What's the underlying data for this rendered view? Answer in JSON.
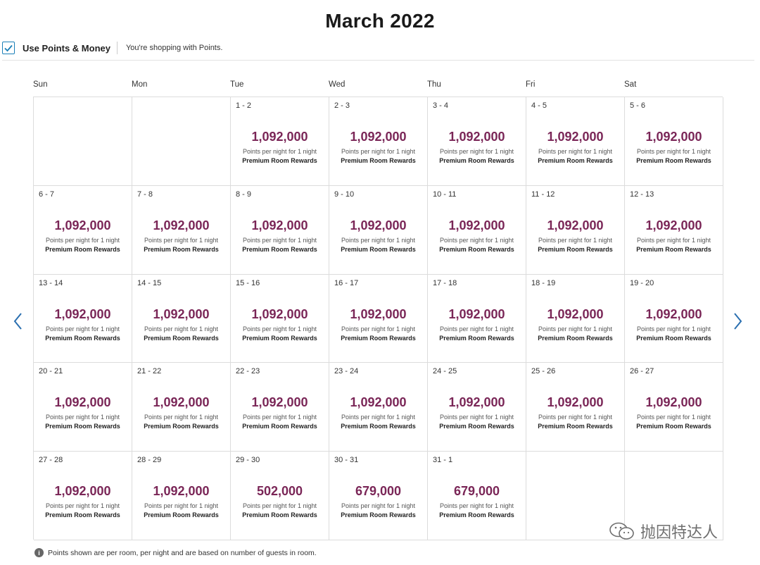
{
  "title": "March 2022",
  "points_money": {
    "label": "Use Points & Money",
    "checked": true
  },
  "shopping_text": "You're shopping with Points.",
  "days_of_week": [
    "Sun",
    "Mon",
    "Tue",
    "Wed",
    "Thu",
    "Fri",
    "Sat"
  ],
  "calendar": {
    "cells": [
      {
        "range": "",
        "points": "",
        "sub": "",
        "type": ""
      },
      {
        "range": "",
        "points": "",
        "sub": "",
        "type": ""
      },
      {
        "range": "1 - 2",
        "points": "1,092,000",
        "sub": "Points per night for 1 night",
        "type": "Premium Room Rewards"
      },
      {
        "range": "2 - 3",
        "points": "1,092,000",
        "sub": "Points per night for 1 night",
        "type": "Premium Room Rewards"
      },
      {
        "range": "3 - 4",
        "points": "1,092,000",
        "sub": "Points per night for 1 night",
        "type": "Premium Room Rewards"
      },
      {
        "range": "4 - 5",
        "points": "1,092,000",
        "sub": "Points per night for 1 night",
        "type": "Premium Room Rewards"
      },
      {
        "range": "5 - 6",
        "points": "1,092,000",
        "sub": "Points per night for 1 night",
        "type": "Premium Room Rewards"
      },
      {
        "range": "6 - 7",
        "points": "1,092,000",
        "sub": "Points per night for 1 night",
        "type": "Premium Room Rewards"
      },
      {
        "range": "7 - 8",
        "points": "1,092,000",
        "sub": "Points per night for 1 night",
        "type": "Premium Room Rewards"
      },
      {
        "range": "8 - 9",
        "points": "1,092,000",
        "sub": "Points per night for 1 night",
        "type": "Premium Room Rewards"
      },
      {
        "range": "9 - 10",
        "points": "1,092,000",
        "sub": "Points per night for 1 night",
        "type": "Premium Room Rewards"
      },
      {
        "range": "10 - 11",
        "points": "1,092,000",
        "sub": "Points per night for 1 night",
        "type": "Premium Room Rewards"
      },
      {
        "range": "11 - 12",
        "points": "1,092,000",
        "sub": "Points per night for 1 night",
        "type": "Premium Room Rewards"
      },
      {
        "range": "12 - 13",
        "points": "1,092,000",
        "sub": "Points per night for 1 night",
        "type": "Premium Room Rewards"
      },
      {
        "range": "13 - 14",
        "points": "1,092,000",
        "sub": "Points per night for 1 night",
        "type": "Premium Room Rewards"
      },
      {
        "range": "14 - 15",
        "points": "1,092,000",
        "sub": "Points per night for 1 night",
        "type": "Premium Room Rewards"
      },
      {
        "range": "15 - 16",
        "points": "1,092,000",
        "sub": "Points per night for 1 night",
        "type": "Premium Room Rewards"
      },
      {
        "range": "16 - 17",
        "points": "1,092,000",
        "sub": "Points per night for 1 night",
        "type": "Premium Room Rewards"
      },
      {
        "range": "17 - 18",
        "points": "1,092,000",
        "sub": "Points per night for 1 night",
        "type": "Premium Room Rewards"
      },
      {
        "range": "18 - 19",
        "points": "1,092,000",
        "sub": "Points per night for 1 night",
        "type": "Premium Room Rewards"
      },
      {
        "range": "19 - 20",
        "points": "1,092,000",
        "sub": "Points per night for 1 night",
        "type": "Premium Room Rewards"
      },
      {
        "range": "20 - 21",
        "points": "1,092,000",
        "sub": "Points per night for 1 night",
        "type": "Premium Room Rewards"
      },
      {
        "range": "21 - 22",
        "points": "1,092,000",
        "sub": "Points per night for 1 night",
        "type": "Premium Room Rewards"
      },
      {
        "range": "22 - 23",
        "points": "1,092,000",
        "sub": "Points per night for 1 night",
        "type": "Premium Room Rewards"
      },
      {
        "range": "23 - 24",
        "points": "1,092,000",
        "sub": "Points per night for 1 night",
        "type": "Premium Room Rewards"
      },
      {
        "range": "24 - 25",
        "points": "1,092,000",
        "sub": "Points per night for 1 night",
        "type": "Premium Room Rewards"
      },
      {
        "range": "25 - 26",
        "points": "1,092,000",
        "sub": "Points per night for 1 night",
        "type": "Premium Room Rewards"
      },
      {
        "range": "26 - 27",
        "points": "1,092,000",
        "sub": "Points per night for 1 night",
        "type": "Premium Room Rewards"
      },
      {
        "range": "27 - 28",
        "points": "1,092,000",
        "sub": "Points per night for 1 night",
        "type": "Premium Room Rewards"
      },
      {
        "range": "28 - 29",
        "points": "1,092,000",
        "sub": "Points per night for 1 night",
        "type": "Premium Room Rewards"
      },
      {
        "range": "29 - 30",
        "points": "502,000",
        "sub": "Points per night for 1 night",
        "type": "Premium Room Rewards"
      },
      {
        "range": "30 - 31",
        "points": "679,000",
        "sub": "Points per night for 1 night",
        "type": "Premium Room Rewards"
      },
      {
        "range": "31 - 1",
        "points": "679,000",
        "sub": "Points per night for 1 night",
        "type": "Premium Room Rewards"
      },
      {
        "range": "",
        "points": "",
        "sub": "",
        "type": ""
      },
      {
        "range": "",
        "points": "",
        "sub": "",
        "type": ""
      }
    ]
  },
  "footnote": "Points shown are per room, per night and are based on number of guests in room.",
  "watermark_text": "抛因特达人",
  "colors": {
    "points": "#7a2657",
    "accent": "#1a7fb8"
  },
  "icons": {
    "prev": "chevron-left-icon",
    "next": "chevron-right-icon",
    "info": "info-icon",
    "check": "check-icon"
  }
}
